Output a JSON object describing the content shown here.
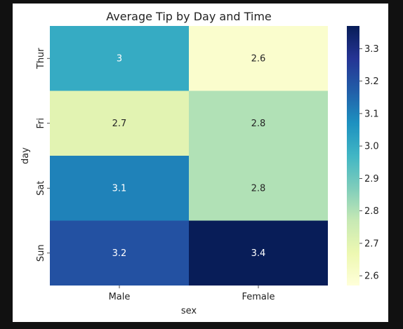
{
  "chart_data": {
    "type": "heatmap",
    "title": "Average Tip by Day and Time",
    "xlabel": "sex",
    "ylabel": "day",
    "x_categories": [
      "Male",
      "Female"
    ],
    "y_categories": [
      "Thur",
      "Fri",
      "Sat",
      "Sun"
    ],
    "values": [
      [
        3.0,
        2.6
      ],
      [
        2.7,
        2.8
      ],
      [
        3.1,
        2.8
      ],
      [
        3.2,
        3.4
      ]
    ],
    "cell_labels": [
      [
        "3",
        "2.6"
      ],
      [
        "2.7",
        "2.8"
      ],
      [
        "3.1",
        "2.8"
      ],
      [
        "3.2",
        "3.4"
      ]
    ],
    "colorbar": {
      "range": [
        2.57,
        3.37
      ],
      "ticks": [
        "2.6",
        "2.7",
        "2.8",
        "2.9",
        "3.0",
        "3.1",
        "3.2",
        "3.3"
      ],
      "colormap": "YlGnBu"
    },
    "grid": false,
    "legend": "colorbar-right"
  }
}
